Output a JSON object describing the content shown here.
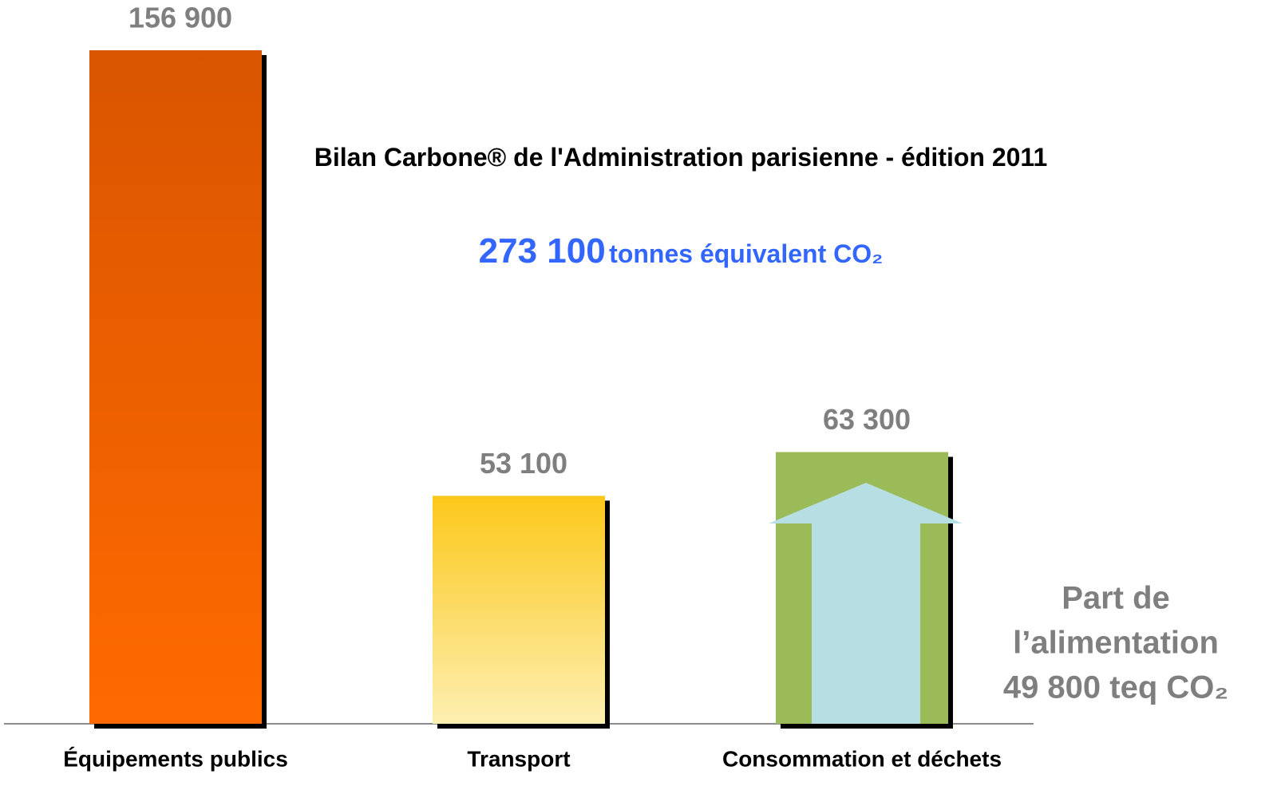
{
  "chart_data": {
    "type": "bar",
    "title": "Bilan Carbone® de l'Administration parisienne - édition 2011",
    "subtitle": {
      "total": "273 100",
      "unit": "tonnes équivalent CO₂"
    },
    "categories": [
      "Équipements publics",
      "Transport",
      "Consommation et déchets"
    ],
    "values": [
      156900,
      53100,
      63300
    ],
    "value_labels": [
      "156 900",
      "53 100",
      "63 300"
    ],
    "colors": [
      [
        "#d95500",
        "#ff6a00"
      ],
      [
        "#fcc81a",
        "#fdefb2"
      ],
      [
        "#9bbb59",
        "#9bbb59"
      ]
    ],
    "annotation": [
      "Part de",
      "l’alimentation",
      "49 800 teq CO₂"
    ]
  }
}
